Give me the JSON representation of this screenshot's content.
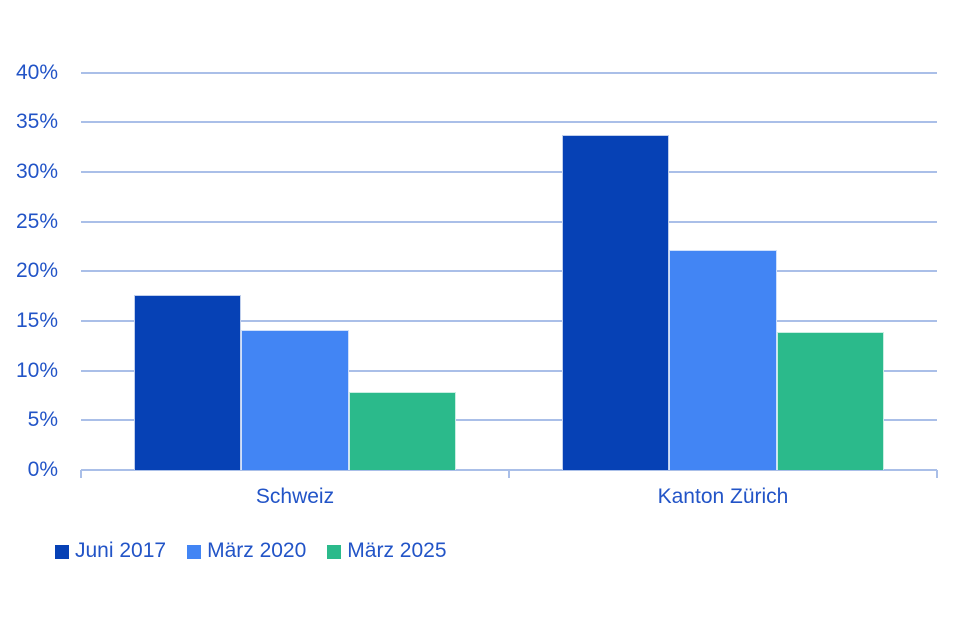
{
  "chart_data": {
    "type": "bar",
    "title": "",
    "xlabel": "",
    "ylabel": "",
    "categories": [
      "Schweiz",
      "Kanton Zürich"
    ],
    "series": [
      {
        "name": "Juni 2017",
        "color": "#0641b5",
        "values": [
          17.6,
          33.7
        ]
      },
      {
        "name": "März 2020",
        "color": "#4285f4",
        "values": [
          14.1,
          22.1
        ]
      },
      {
        "name": "März 2025",
        "color": "#2bba8b",
        "values": [
          7.8,
          13.9
        ]
      }
    ],
    "ylim": [
      0,
      40
    ],
    "ytick_step": 5,
    "ytick_labels": [
      "0%",
      "5%",
      "10%",
      "15%",
      "20%",
      "25%",
      "30%",
      "35%",
      "40%"
    ],
    "grid": true,
    "legend_position": "bottom-left"
  },
  "colors": {
    "background": "#ffffff",
    "gridline": "#aabfe8",
    "axis_line": "#aabfe8",
    "label_text": "#2254c7"
  }
}
